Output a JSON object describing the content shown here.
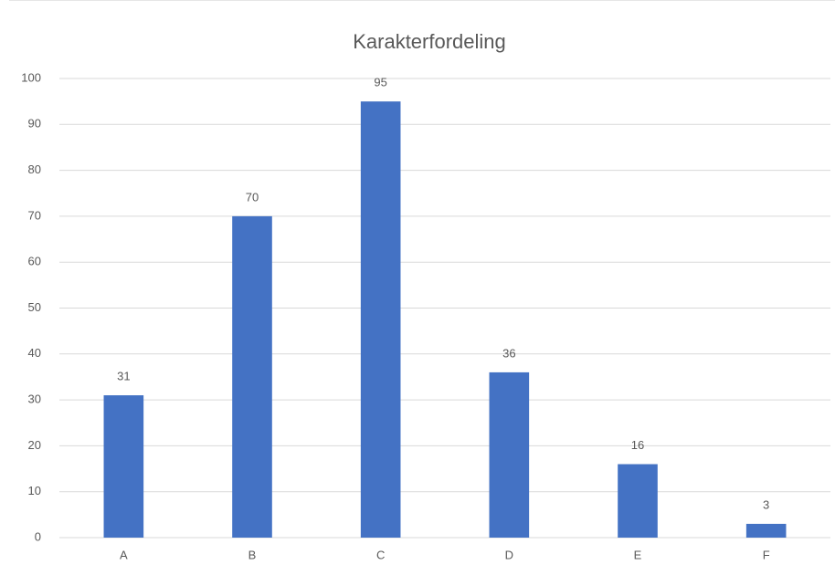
{
  "chart_data": {
    "type": "bar",
    "title": "Karakterfordeling",
    "categories": [
      "A",
      "B",
      "C",
      "D",
      "E",
      "F"
    ],
    "values": [
      31,
      70,
      95,
      36,
      16,
      3
    ],
    "color": "#4472c4",
    "ylim": [
      0,
      100
    ],
    "yticks": [
      0,
      10,
      20,
      30,
      40,
      50,
      60,
      70,
      80,
      90,
      100
    ],
    "grid": true,
    "data_labels": true
  }
}
